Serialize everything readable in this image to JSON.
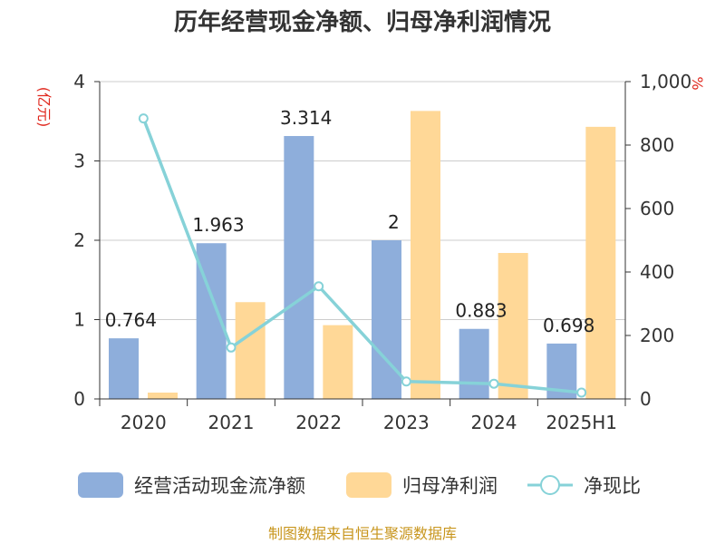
{
  "title": "历年经营现金净额、归母净利润情况",
  "source": "制图数据来自恒生聚源数据库",
  "colors": {
    "cashflow": "#8eaedb",
    "profit": "#ffd897",
    "ratio": "#86d2d8",
    "unit": "#e0281e",
    "source": "#c8961e"
  },
  "chart_data": {
    "type": "bar",
    "title": "历年经营现金净额、归母净利润情况",
    "categories": [
      "2020",
      "2021",
      "2022",
      "2023",
      "2024",
      "2025H1"
    ],
    "series": [
      {
        "name": "经营活动现金流净额",
        "type": "bar",
        "axis": "left",
        "values": [
          0.764,
          1.963,
          3.314,
          2,
          0.883,
          0.698
        ],
        "labels": [
          "0.764",
          "1.963",
          "3.314",
          "2",
          "0.883",
          "0.698"
        ]
      },
      {
        "name": "归母净利润",
        "type": "bar",
        "axis": "left",
        "values": [
          0.08,
          1.22,
          0.93,
          3.63,
          1.84,
          3.43
        ]
      },
      {
        "name": "净现比",
        "type": "line",
        "axis": "right",
        "values": [
          884,
          162,
          355,
          55,
          48,
          20
        ]
      }
    ],
    "left_axis": {
      "unit": "(亿元)",
      "ylim": [
        0,
        4
      ],
      "ticks": [
        "0",
        "1",
        "2",
        "3",
        "4"
      ]
    },
    "right_axis": {
      "unit": "%",
      "ylim": [
        0,
        1000
      ],
      "ticks": [
        "0",
        "200",
        "400",
        "600",
        "800",
        "1,000"
      ]
    },
    "grid": true,
    "legend_position": "bottom"
  }
}
